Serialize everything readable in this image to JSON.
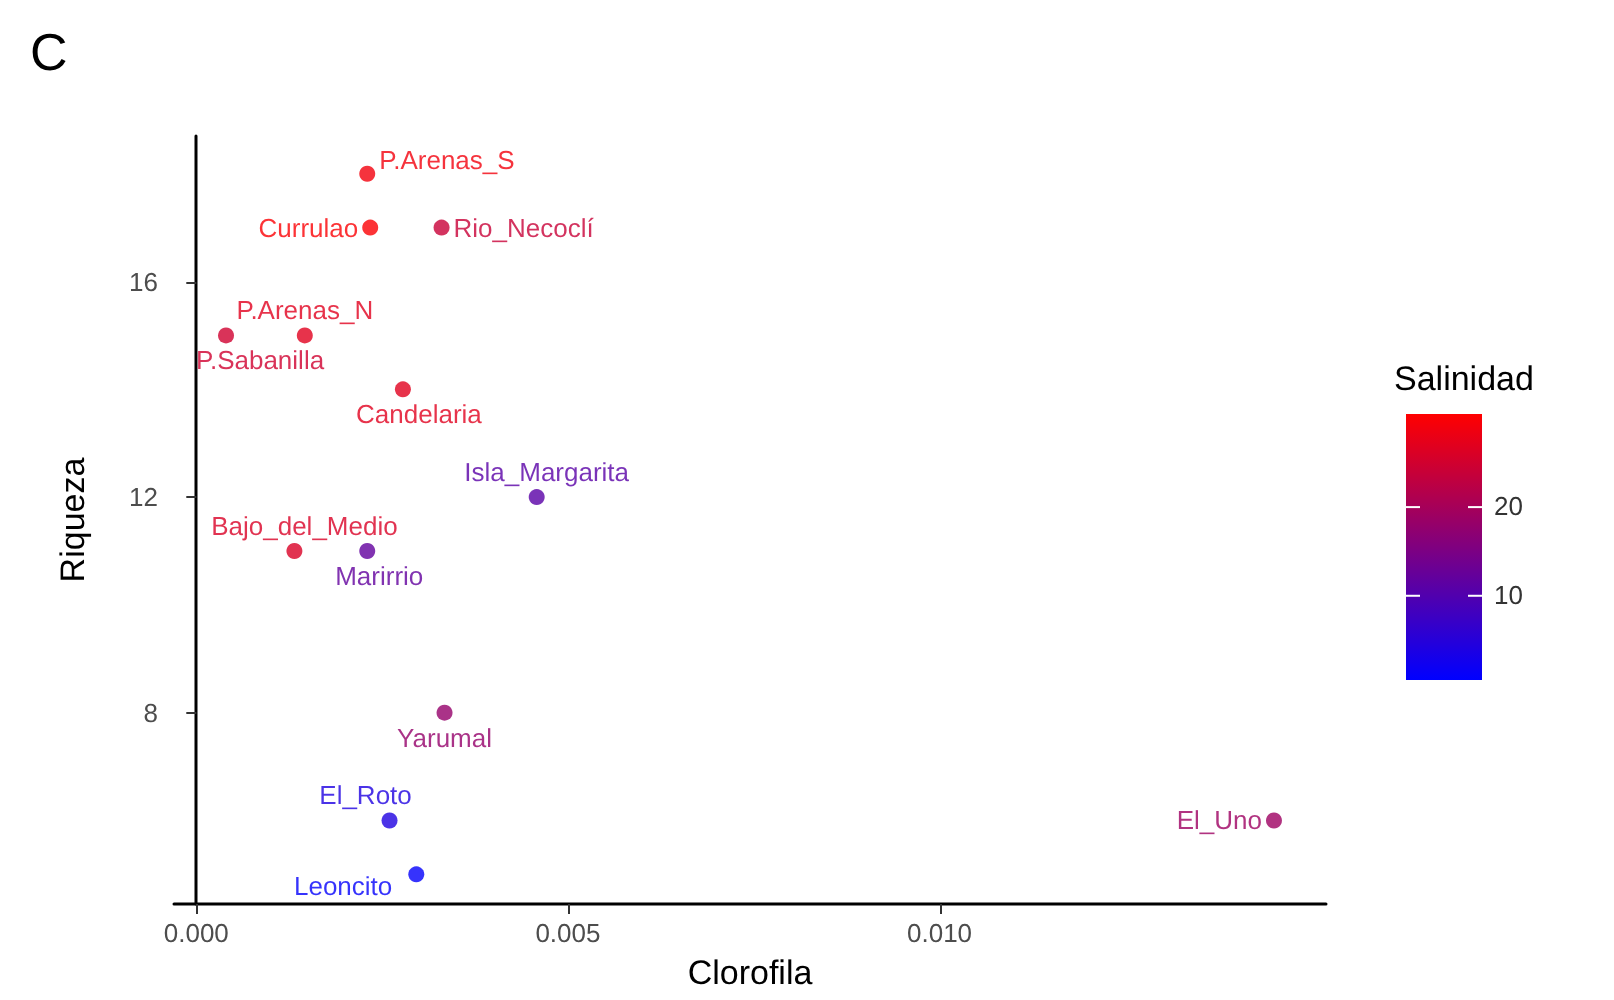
{
  "chart_data": {
    "type": "scatter",
    "title": "C",
    "xlabel": "Clorofila",
    "ylabel": "Riqueza",
    "clabel": "Salinidad",
    "x": [
      0.0023,
      0.00234,
      0.0033,
      0.00146,
      0.0004,
      0.00278,
      0.00458,
      0.00132,
      0.0023,
      0.00334,
      0.0026,
      0.00296,
      0.0145
    ],
    "values": [
      18,
      17,
      17,
      15,
      15,
      14,
      12,
      11,
      11,
      8,
      6,
      5,
      6
    ],
    "cvalues": [
      29,
      30,
      24,
      27,
      25,
      27,
      11,
      26,
      12,
      18,
      4,
      1,
      19
    ],
    "clim": [
      0.5,
      30.5
    ],
    "cticks": [
      10,
      20
    ],
    "xlim": [
      -0.0003,
      0.0152
    ],
    "ylim": [
      4.45,
      18.7
    ],
    "xticks": [
      {
        "value": 0,
        "label": "0.000"
      },
      {
        "value": 0.005,
        "label": "0.005"
      },
      {
        "value": 0.01,
        "label": "0.010"
      }
    ],
    "yticks": [
      8,
      12,
      16
    ],
    "grid": false,
    "marker": "circle",
    "annotations": [
      {
        "text": "P.Arenas_S",
        "x": 0.0023,
        "y": 18
      },
      {
        "text": "Currulao",
        "x": 0.00234,
        "y": 17
      },
      {
        "text": "Rio_Necoclí",
        "x": 0.0033,
        "y": 17
      },
      {
        "text": "P.Arenas_N",
        "x": 0.00146,
        "y": 15
      },
      {
        "text": "P.Sabanilla",
        "x": 0.0004,
        "y": 15
      },
      {
        "text": "Candelaria",
        "x": 0.00278,
        "y": 14
      },
      {
        "text": "Isla_Margarita",
        "x": 0.00458,
        "y": 12
      },
      {
        "text": "Bajo_del_Medio",
        "x": 0.00132,
        "y": 11
      },
      {
        "text": "Marirrio",
        "x": 0.0023,
        "y": 11
      },
      {
        "text": "Yarumal",
        "x": 0.00334,
        "y": 8
      },
      {
        "text": "El_Roto",
        "x": 0.0026,
        "y": 6
      },
      {
        "text": "Leoncito",
        "x": 0.00296,
        "y": 5
      },
      {
        "text": "El_Uno",
        "x": 0.0145,
        "y": 6
      }
    ]
  }
}
